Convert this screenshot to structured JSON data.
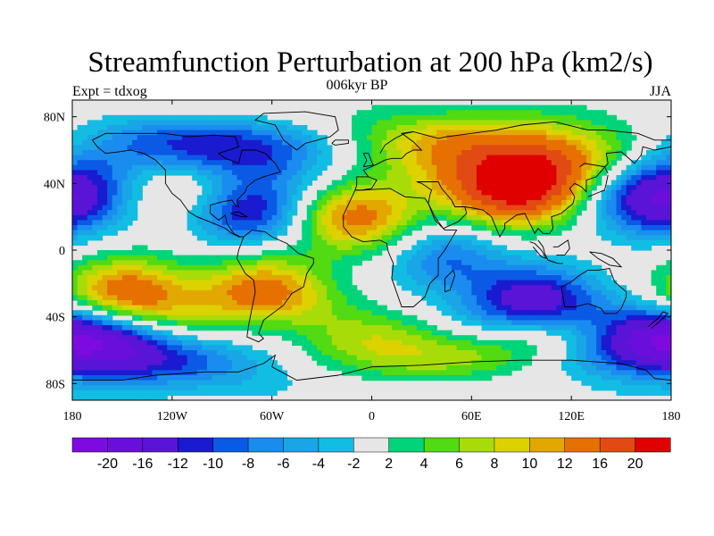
{
  "title": "Streamfunction Perturbation at 200 hPa (km2/s)",
  "subtitle": "006kyr BP",
  "left_label": "Expt = tdxog",
  "right_label": "JJA",
  "lon_ticks": [
    {
      "lon": -180,
      "label": "180"
    },
    {
      "lon": -120,
      "label": "120W"
    },
    {
      "lon": -60,
      "label": "60W"
    },
    {
      "lon": 0,
      "label": "0"
    },
    {
      "lon": 60,
      "label": "60E"
    },
    {
      "lon": 120,
      "label": "120E"
    },
    {
      "lon": 180,
      "label": "180"
    }
  ],
  "lat_ticks": [
    {
      "lat": 80,
      "label": "80N"
    },
    {
      "lat": 40,
      "label": "40N"
    },
    {
      "lat": 0,
      "label": "0"
    },
    {
      "lat": -40,
      "label": "40S"
    },
    {
      "lat": -80,
      "label": "80S"
    }
  ],
  "colorbar": {
    "colors": [
      "#7d0be0",
      "#6a0fdb",
      "#5a14d6",
      "#1a1ad0",
      "#0a5ae6",
      "#1a8cf0",
      "#18a6e6",
      "#12bde3",
      "#e6e6e6",
      "#00d47a",
      "#52da12",
      "#a8dc08",
      "#dcd200",
      "#e2a800",
      "#e67000",
      "#e24a14",
      "#e00000"
    ],
    "labels": [
      "-20",
      "-16",
      "-12",
      "-10",
      "-8",
      "-6",
      "-4",
      "-2",
      "2",
      "4",
      "6",
      "8",
      "10",
      "12",
      "16",
      "20"
    ]
  },
  "chart_data": {
    "type": "contour-map",
    "title": "Streamfunction Perturbation at 200 hPa (km2/s)",
    "subtitle": "006kyr BP",
    "season": "JJA",
    "experiment": "tdxog",
    "xlim": [
      -180,
      180
    ],
    "ylim": [
      -90,
      90
    ],
    "contour_levels": [
      -20,
      -16,
      -12,
      -10,
      -8,
      -6,
      -4,
      -2,
      2,
      4,
      6,
      8,
      10,
      12,
      16,
      20
    ],
    "anomaly_centers": [
      {
        "lon": -80,
        "lat": 58,
        "value": -14
      },
      {
        "lon": -75,
        "lat": 25,
        "value": -14
      },
      {
        "lon": -168,
        "lat": 55,
        "value": -6
      },
      {
        "lon": -108,
        "lat": 40,
        "value": 10
      },
      {
        "lon": -148,
        "lat": -27,
        "value": 16
      },
      {
        "lon": -65,
        "lat": -25,
        "value": 14
      },
      {
        "lon": -10,
        "lat": 20,
        "value": 14
      },
      {
        "lon": 0,
        "lat": -60,
        "value": 10
      },
      {
        "lon": 85,
        "lat": 35,
        "value": 20
      },
      {
        "lon": 100,
        "lat": 55,
        "value": 14
      },
      {
        "lon": 20,
        "lat": 68,
        "value": 6
      },
      {
        "lon": 100,
        "lat": -32,
        "value": -16
      },
      {
        "lon": 115,
        "lat": -55,
        "value": 10
      },
      {
        "lon": 172,
        "lat": 30,
        "value": -16
      },
      {
        "lon": 175,
        "lat": -55,
        "value": -14
      },
      {
        "lon": -175,
        "lat": -55,
        "value": -12
      },
      {
        "lon": -58,
        "lat": -66,
        "value": -6
      },
      {
        "lon": 45,
        "lat": -5,
        "value": -8
      }
    ]
  }
}
